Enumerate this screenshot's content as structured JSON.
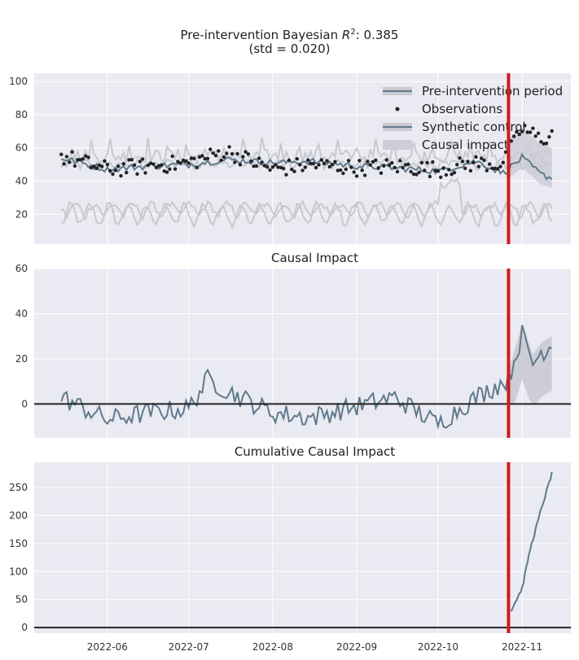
{
  "figure": {
    "title_line1": "Pre-intervention Bayesian R²: 0.385",
    "title_line2": "(std = 0.020)"
  },
  "colors": {
    "background": "#eaeaf2",
    "grid": "#ffffff",
    "fit_line": "#5f7a8c",
    "observations": "#222222",
    "controls": "#c8c8cf",
    "intervention": "#d11a1a",
    "zero_line": "#222222",
    "impact_band": "#c9cad3"
  },
  "chart_data": [
    {
      "type": "line",
      "panel": "main",
      "title": "",
      "ylim": [
        2,
        105
      ],
      "yticks": [
        20,
        40,
        60,
        80,
        100
      ],
      "legend_position": "top-right",
      "legend": [
        "Pre-intervention period",
        "Observations",
        "Synthetic control",
        "Causal impact"
      ],
      "intervention_date": "2022-10-27",
      "series": [
        {
          "name": "Observations",
          "x": [
            "2022-05-15",
            "2022-06-01",
            "2022-06-15",
            "2022-07-01",
            "2022-07-15",
            "2022-08-01",
            "2022-08-15",
            "2022-09-01",
            "2022-09-15",
            "2022-10-01",
            "2022-10-15",
            "2022-10-25",
            "2022-11-01",
            "2022-11-08",
            "2022-11-12"
          ],
          "values": [
            55,
            47,
            49,
            51,
            58,
            47,
            50,
            48,
            49,
            47,
            51,
            50,
            72,
            65,
            68
          ]
        },
        {
          "name": "Synthetic control",
          "x": [
            "2022-05-15",
            "2022-06-01",
            "2022-06-15",
            "2022-07-01",
            "2022-07-15",
            "2022-08-01",
            "2022-08-15",
            "2022-09-01",
            "2022-09-15",
            "2022-10-01",
            "2022-10-15",
            "2022-10-25",
            "2022-11-01",
            "2022-11-08",
            "2022-11-12"
          ],
          "values": [
            54,
            47,
            49,
            50,
            53,
            51,
            52,
            49,
            48,
            46,
            52,
            45,
            54,
            44,
            42
          ]
        }
      ]
    },
    {
      "type": "line",
      "panel": "impact",
      "title": "Causal Impact",
      "ylim": [
        -15,
        60
      ],
      "yticks": [
        0,
        20,
        40,
        60
      ],
      "series": [
        {
          "name": "Causal impact",
          "x": [
            "2022-05-15",
            "2022-06-01",
            "2022-06-15",
            "2022-07-01",
            "2022-07-08",
            "2022-07-15",
            "2022-08-01",
            "2022-08-15",
            "2022-09-01",
            "2022-09-15",
            "2022-10-01",
            "2022-10-15",
            "2022-10-27",
            "2022-11-01",
            "2022-11-05",
            "2022-11-08",
            "2022-11-12"
          ],
          "values": [
            3,
            -7,
            -4,
            -2,
            11,
            6,
            -4,
            -6,
            -1,
            3,
            -9,
            3,
            11,
            31,
            18,
            23,
            26
          ]
        }
      ]
    },
    {
      "type": "line",
      "panel": "cumulative",
      "title": "Cumulative Causal Impact",
      "ylim": [
        -10,
        295
      ],
      "yticks": [
        0,
        50,
        100,
        150,
        200,
        250
      ],
      "x_ticks": [
        "2022-06",
        "2022-07",
        "2022-08",
        "2022-09",
        "2022-10",
        "2022-11"
      ],
      "series": [
        {
          "name": "Cumulative causal impact",
          "x": [
            "2022-10-28",
            "2022-11-01",
            "2022-11-04",
            "2022-11-08",
            "2022-11-12"
          ],
          "values": [
            31,
            70,
            140,
            210,
            275
          ]
        }
      ]
    }
  ]
}
